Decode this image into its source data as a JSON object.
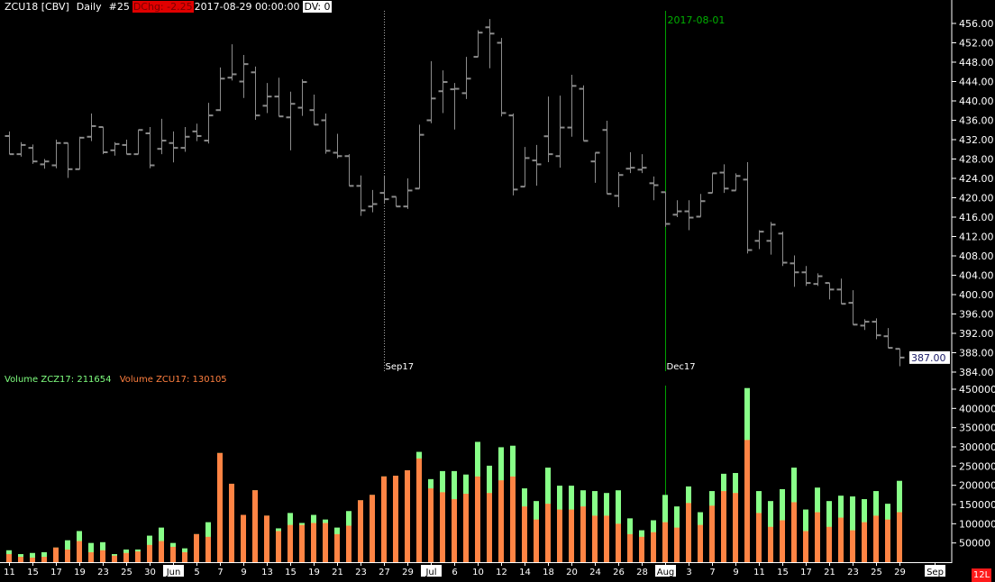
{
  "header": {
    "symbol": "ZCU18 [CBV]",
    "period": "Daily",
    "bar_no": "#25",
    "dchg": "DChg: -2.25",
    "datetime": "2017-08-29 00:00:00",
    "dv": "DV: 0"
  },
  "volume_legend": {
    "zcz17": "Volume ZCZ17: 211654",
    "zcu17": "Volume ZCU17: 130105"
  },
  "badge": "12L",
  "colors": {
    "background": "#000000",
    "price_bar": "#8c8c8c",
    "volume_zcz17": "#88ff88",
    "volume_zcu17": "#ff8444",
    "marker_line": "#00a000",
    "axis": "#ffffff"
  },
  "chart_data": [
    {
      "type": "ohlc",
      "title": "ZCU18 [CBV] Daily",
      "ylim": [
        384,
        458
      ],
      "y_ticks": [
        "456.00",
        "452.00",
        "448.00",
        "444.00",
        "440.00",
        "436.00",
        "432.00",
        "428.00",
        "424.00",
        "420.00",
        "416.00",
        "412.00",
        "408.00",
        "404.00",
        "400.00",
        "396.00",
        "392.00",
        "388.00",
        "384.00"
      ],
      "last_price_label": "387.00",
      "markers": [
        {
          "bar": 33,
          "style": "dotted",
          "bottom_label": "Sep17",
          "top_label": ""
        },
        {
          "bar": 57,
          "style": "solid-green",
          "bottom_label": "Dec17",
          "top_label": "2017-08-01"
        }
      ],
      "ohlc": [
        [
          432.75,
          433.7,
          429.0,
          429.0
        ],
        [
          429.0,
          431.5,
          428.5,
          430.9
        ],
        [
          430.3,
          431.0,
          427.0,
          427.5
        ],
        [
          426.9,
          428.0,
          426.0,
          427.5
        ],
        [
          426.7,
          432.0,
          426.1,
          431.3
        ],
        [
          431.3,
          431.3,
          424.1,
          425.9
        ],
        [
          425.9,
          432.6,
          425.9,
          432.4
        ],
        [
          432.6,
          437.4,
          431.7,
          434.8
        ],
        [
          434.6,
          434.6,
          429.0,
          429.4
        ],
        [
          429.8,
          431.5,
          428.7,
          431.1
        ],
        [
          430.9,
          432.0,
          429.0,
          429.0
        ],
        [
          429.0,
          434.0,
          429.0,
          434.0
        ],
        [
          433.3,
          434.6,
          426.1,
          426.7
        ],
        [
          430.1,
          436.3,
          429.0,
          431.8
        ],
        [
          431.3,
          433.7,
          427.3,
          430.3
        ],
        [
          430.3,
          434.6,
          429.5,
          432.6
        ],
        [
          433.7,
          435.3,
          431.7,
          432.75
        ],
        [
          431.8,
          439.6,
          431.2,
          437.0
        ],
        [
          438.1,
          446.9,
          437.9,
          444.6
        ],
        [
          444.8,
          451.7,
          444.2,
          445.5
        ],
        [
          444.0,
          449.5,
          440.6,
          447.6
        ],
        [
          445.9,
          447.1,
          436.1,
          437.0
        ],
        [
          439.0,
          443.7,
          437.5,
          440.9
        ],
        [
          440.9,
          444.8,
          436.8,
          436.8
        ],
        [
          436.6,
          441.9,
          429.8,
          439.4
        ],
        [
          438.6,
          444.5,
          436.9,
          443.9
        ],
        [
          438.1,
          441.3,
          435.1,
          435.1
        ],
        [
          436.0,
          437.4,
          429.1,
          429.7
        ],
        [
          429.3,
          433.2,
          428.15,
          428.6
        ],
        [
          428.6,
          429.0,
          422.45,
          422.45
        ],
        [
          422.45,
          424.6,
          416.25,
          417.4
        ],
        [
          418.2,
          421.6,
          417.0,
          418.7
        ],
        [
          421.0,
          424.6,
          419.0,
          419.7
        ],
        [
          420.2,
          420.2,
          418.2,
          418.2
        ],
        [
          418.2,
          424.0,
          417.7,
          421.5
        ],
        [
          421.9,
          435.1,
          421.9,
          433.0
        ],
        [
          436.0,
          448.2,
          435.4,
          440.5
        ],
        [
          442.0,
          446.3,
          437.5,
          443.9
        ],
        [
          442.4,
          443.7,
          434.1,
          442.5
        ],
        [
          441.6,
          449.1,
          440.4,
          444.6
        ],
        [
          449.1,
          454.6,
          449.1,
          454.1
        ],
        [
          455.2,
          456.9,
          446.75,
          453.9
        ],
        [
          452.0,
          453.0,
          436.8,
          437.5
        ],
        [
          437.0,
          437.4,
          420.5,
          421.7
        ],
        [
          422.3,
          430.5,
          422.3,
          428.2
        ],
        [
          427.7,
          430.9,
          422.5,
          426.9
        ],
        [
          432.7,
          440.9,
          427.35,
          429.0
        ],
        [
          428.6,
          441.1,
          426.2,
          434.5
        ],
        [
          434.5,
          445.4,
          432.6,
          443.1
        ],
        [
          442.5,
          443.2,
          431.75,
          431.75
        ],
        [
          427.5,
          429.3,
          423.1,
          429.3
        ],
        [
          434.0,
          435.9,
          420.8,
          420.8
        ],
        [
          420.4,
          425.3,
          418.05,
          424.7
        ],
        [
          426.0,
          429.4,
          425.1,
          426.2
        ],
        [
          425.8,
          429.0,
          425.1,
          426.2
        ],
        [
          423.0,
          424.4,
          419.5,
          422.6
        ],
        [
          421.15,
          421.15,
          414.0,
          414.6
        ],
        [
          416.5,
          419.5,
          416.0,
          417.2
        ],
        [
          417.2,
          419.5,
          413.3,
          415.9
        ],
        [
          416.1,
          420.8,
          416.1,
          419.3
        ],
        [
          421.0,
          425.05,
          421.0,
          425.05
        ],
        [
          425.2,
          426.9,
          421.0,
          421.9
        ],
        [
          421.5,
          425.05,
          421.5,
          424.5
        ],
        [
          423.75,
          427.35,
          408.5,
          409.2
        ],
        [
          411.1,
          413.3,
          409.4,
          413.0
        ],
        [
          411.1,
          415.0,
          408.25,
          414.45
        ],
        [
          412.6,
          413.0,
          405.9,
          406.6
        ],
        [
          406.45,
          408.1,
          401.6,
          404.6
        ],
        [
          404.6,
          405.9,
          401.8,
          402.4
        ],
        [
          402.2,
          404.4,
          401.8,
          403.8
        ],
        [
          402.4,
          402.4,
          399.0,
          401.05
        ],
        [
          401.05,
          403.3,
          398.1,
          398.1
        ],
        [
          398.3,
          400.9,
          393.8,
          393.8
        ],
        [
          393.6,
          394.9,
          392.7,
          394.4
        ],
        [
          394.4,
          395.1,
          390.8,
          391.6
        ],
        [
          391.4,
          393.1,
          389.0,
          389.0
        ],
        [
          388.8,
          388.8,
          385.2,
          387.0
        ]
      ]
    },
    {
      "type": "bar",
      "ylim": [
        0,
        460000
      ],
      "y_ticks": [
        "450000",
        "400000",
        "350000",
        "300000",
        "250000",
        "200000",
        "150000",
        "100000",
        "50000"
      ],
      "series": [
        {
          "name": "Volume ZCZ17",
          "values": [
            31000,
            21000,
            24000,
            26000,
            38000,
            57000,
            81000,
            50000,
            52000,
            21000,
            33000,
            33000,
            69000,
            90000,
            50000,
            36000,
            73000,
            104000,
            284000,
            204000,
            123000,
            187000,
            121000,
            88000,
            128000,
            102000,
            123000,
            111000,
            90000,
            133000,
            161000,
            175000,
            223000,
            225000,
            239000,
            287000,
            216000,
            237000,
            237000,
            228000,
            313000,
            251000,
            299000,
            303000,
            192000,
            159000,
            246000,
            199000,
            199000,
            187000,
            185000,
            180000,
            187000,
            114000,
            83000,
            109000,
            175000,
            145000,
            197000,
            130000,
            185000,
            230000,
            232000,
            453000,
            185000,
            159000,
            190000,
            246000,
            137000,
            194000,
            159000,
            173000,
            171000,
            164000,
            185000,
            152000,
            211654
          ]
        },
        {
          "name": "Volume ZCU17",
          "values": [
            21000,
            14000,
            12000,
            14000,
            38000,
            33000,
            55000,
            26000,
            31000,
            17000,
            24000,
            28000,
            45000,
            55000,
            40000,
            26000,
            73000,
            66000,
            284000,
            204000,
            123000,
            187000,
            121000,
            81000,
            97000,
            97000,
            102000,
            102000,
            73000,
            95000,
            161000,
            175000,
            223000,
            225000,
            239000,
            270000,
            192000,
            182000,
            164000,
            178000,
            223000,
            180000,
            213000,
            223000,
            145000,
            111000,
            152000,
            137000,
            137000,
            145000,
            121000,
            121000,
            100000,
            73000,
            66000,
            78000,
            104000,
            90000,
            154000,
            97000,
            147000,
            185000,
            180000,
            318000,
            128000,
            92000,
            109000,
            156000,
            81000,
            130000,
            92000,
            116000,
            83000,
            104000,
            121000,
            111000,
            130105
          ]
        }
      ],
      "x_tick_labels": [
        {
          "bar": 1,
          "label": "11"
        },
        {
          "bar": 3,
          "label": "15"
        },
        {
          "bar": 5,
          "label": "17"
        },
        {
          "bar": 7,
          "label": "19"
        },
        {
          "bar": 9,
          "label": "23"
        },
        {
          "bar": 11,
          "label": "25"
        },
        {
          "bar": 13,
          "label": "30"
        },
        {
          "bar": 15,
          "label": "Jun",
          "month": true
        },
        {
          "bar": 17,
          "label": "5"
        },
        {
          "bar": 19,
          "label": "7"
        },
        {
          "bar": 21,
          "label": "9"
        },
        {
          "bar": 23,
          "label": "13"
        },
        {
          "bar": 25,
          "label": "15"
        },
        {
          "bar": 27,
          "label": "19"
        },
        {
          "bar": 29,
          "label": "21"
        },
        {
          "bar": 31,
          "label": "23"
        },
        {
          "bar": 33,
          "label": "27"
        },
        {
          "bar": 35,
          "label": "29"
        },
        {
          "bar": 37,
          "label": "Jul",
          "month": true
        },
        {
          "bar": 39,
          "label": "6"
        },
        {
          "bar": 41,
          "label": "10"
        },
        {
          "bar": 43,
          "label": "12"
        },
        {
          "bar": 45,
          "label": "14"
        },
        {
          "bar": 47,
          "label": "18"
        },
        {
          "bar": 49,
          "label": "20"
        },
        {
          "bar": 51,
          "label": "24"
        },
        {
          "bar": 53,
          "label": "26"
        },
        {
          "bar": 55,
          "label": "28"
        },
        {
          "bar": 57,
          "label": "Aug",
          "month": true
        },
        {
          "bar": 59,
          "label": "3"
        },
        {
          "bar": 61,
          "label": "7"
        },
        {
          "bar": 63,
          "label": "9"
        },
        {
          "bar": 65,
          "label": "11"
        },
        {
          "bar": 67,
          "label": "15"
        },
        {
          "bar": 69,
          "label": "17"
        },
        {
          "bar": 71,
          "label": "21"
        },
        {
          "bar": 73,
          "label": "23"
        },
        {
          "bar": 75,
          "label": "25"
        },
        {
          "bar": 77,
          "label": "29"
        },
        {
          "bar": 80,
          "label": "Sep",
          "month": true
        }
      ]
    }
  ]
}
